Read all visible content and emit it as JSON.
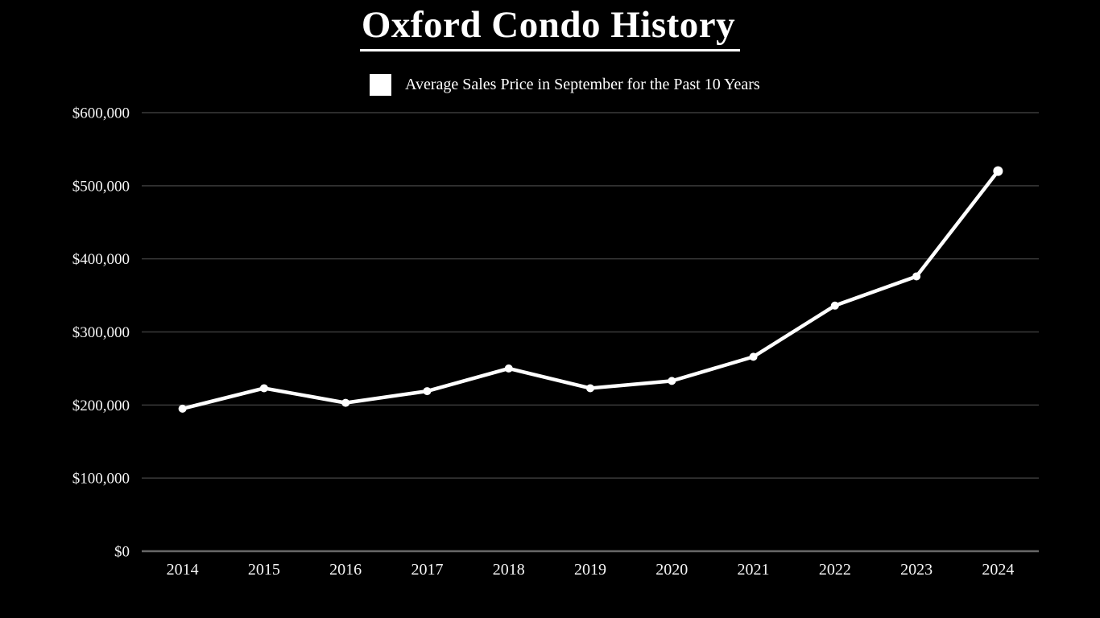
{
  "header": {
    "title": "Oxford Condo History"
  },
  "legend": {
    "label": "Average Sales Price in September for the Past 10 Years",
    "swatch_color": "#ffffff"
  },
  "chart_data": {
    "type": "line",
    "title": "Oxford Condo History",
    "xlabel": "",
    "ylabel": "",
    "categories": [
      "2014",
      "2015",
      "2016",
      "2017",
      "2018",
      "2019",
      "2020",
      "2021",
      "2022",
      "2023",
      "2024"
    ],
    "series": [
      {
        "name": "Average Sales Price in September for the Past 10 Years",
        "color": "#ffffff",
        "values": [
          195000,
          223000,
          203000,
          219000,
          250000,
          223000,
          233000,
          266000,
          336000,
          376000,
          520000
        ]
      }
    ],
    "ylim": [
      0,
      600000
    ],
    "y_ticks": [
      {
        "value": 0,
        "label": "$0"
      },
      {
        "value": 100000,
        "label": "$100,000"
      },
      {
        "value": 200000,
        "label": "$200,000"
      },
      {
        "value": 300000,
        "label": "$300,000"
      },
      {
        "value": 400000,
        "label": "$400,000"
      },
      {
        "value": 500000,
        "label": "$500,000"
      },
      {
        "value": 600000,
        "label": "$600,000"
      }
    ],
    "grid": true,
    "legend_position": "top-center",
    "colors": {
      "background": "#000000",
      "text": "#ffffff",
      "line": "#ffffff",
      "marker": "#ffffff",
      "gridline": "#3a3a3a",
      "axis_line": "#676767"
    }
  }
}
